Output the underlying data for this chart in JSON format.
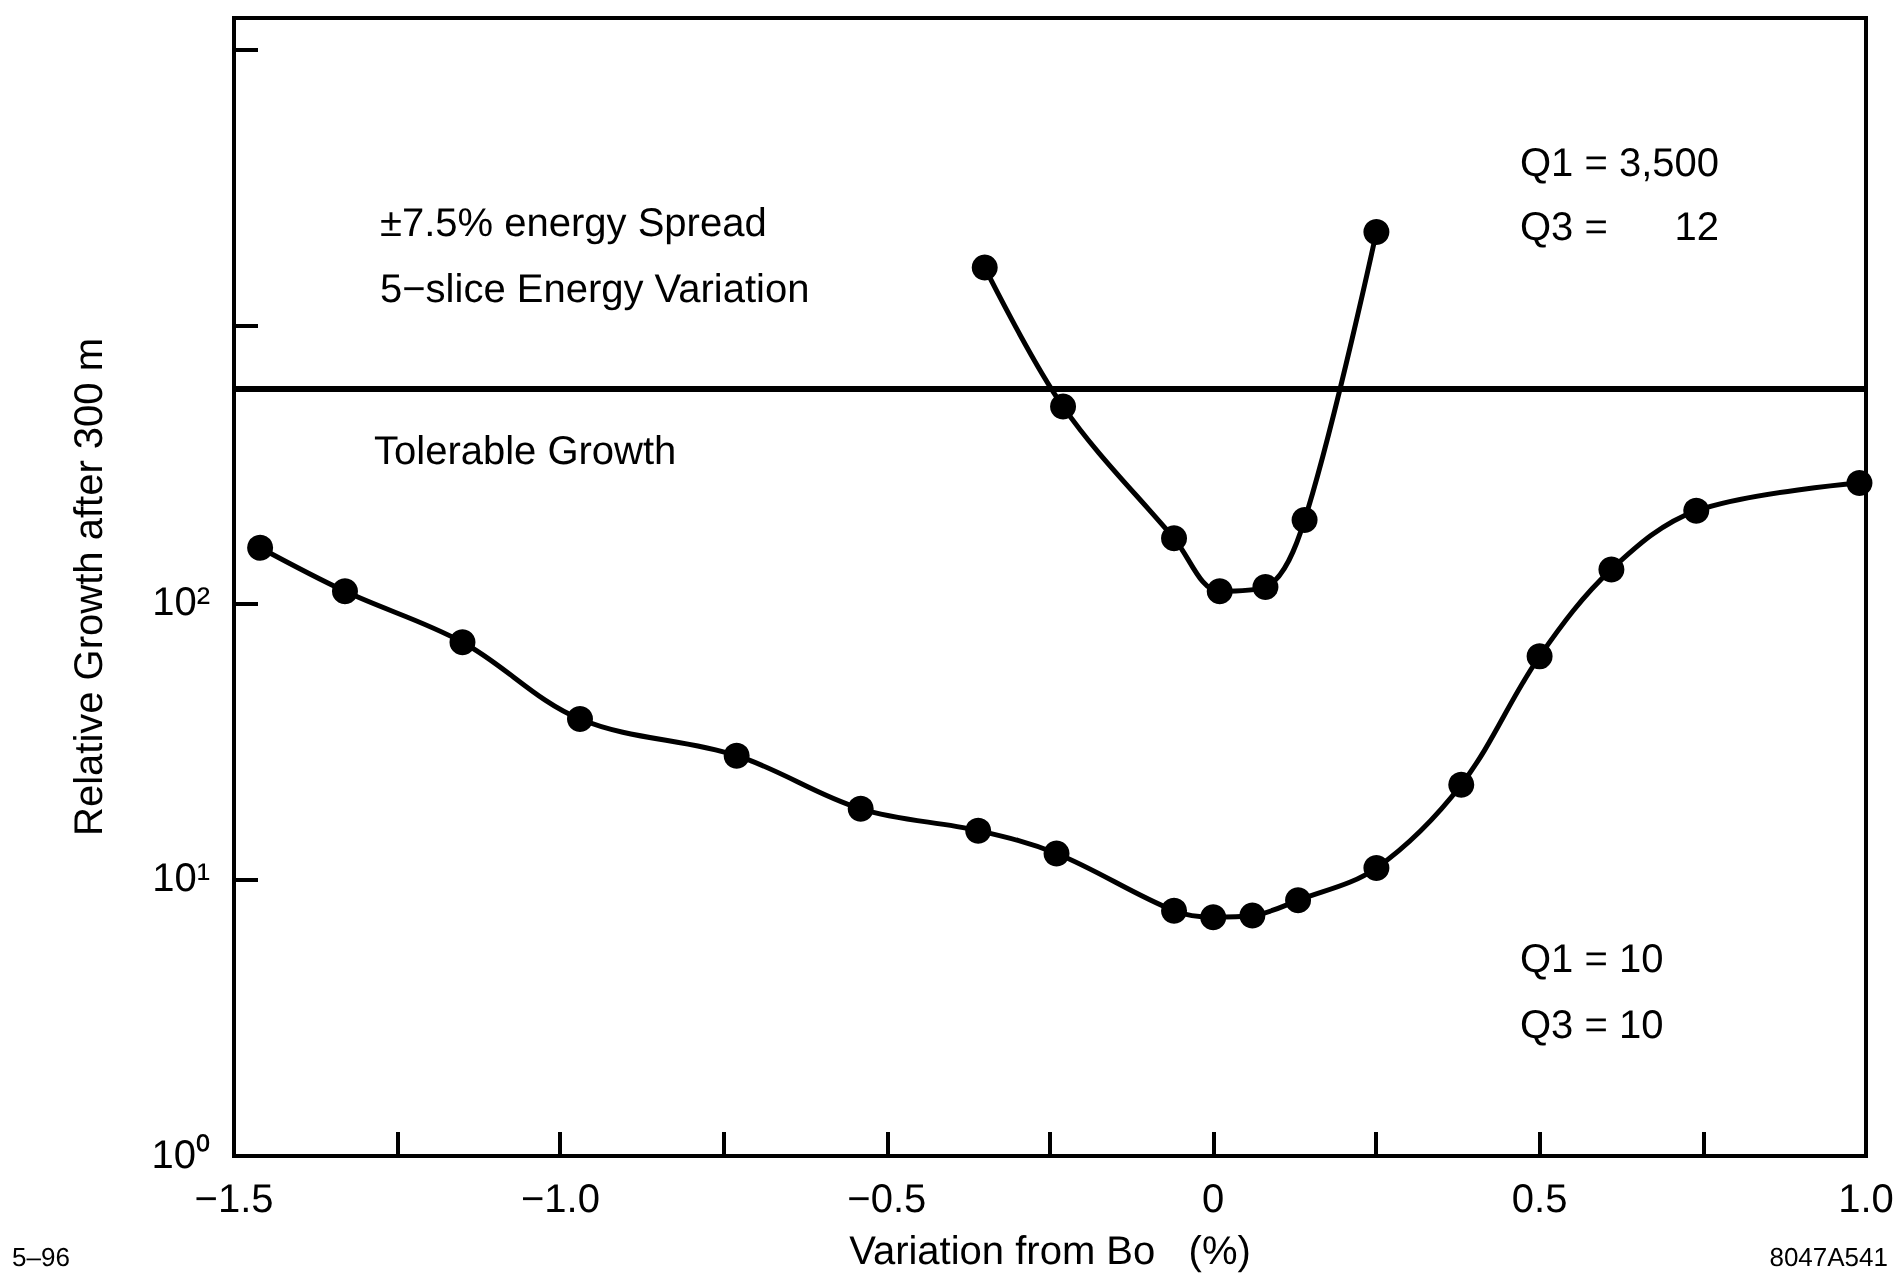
{
  "chart_data": {
    "type": "line",
    "xlabel": "Variation from Bo   (%)",
    "ylabel": "Relative Growth after 300 m",
    "log": "y",
    "grid": false,
    "marker": "circle",
    "line_style": "solid",
    "xlim": [
      -1.5,
      1.0
    ],
    "xticks": [
      {
        "value": -1.5,
        "label": "−1.5"
      },
      {
        "value": -1.25,
        "label": null
      },
      {
        "value": -1.0,
        "label": "−1.0"
      },
      {
        "value": -0.75,
        "label": null
      },
      {
        "value": -0.5,
        "label": "−0.5"
      },
      {
        "value": -0.25,
        "label": null
      },
      0,
      {
        "value": 0.25,
        "label": null
      },
      0.5,
      {
        "value": 0.75,
        "label": null
      },
      {
        "value": 1.0,
        "label": "1.0"
      }
    ],
    "ylim": [
      1,
      13000
    ],
    "yticks": [
      {
        "value": 1,
        "label": "10⁰"
      },
      {
        "value": 10,
        "label": "10¹"
      },
      {
        "value": 100,
        "label": "10²"
      },
      {
        "value": 1000,
        "label": null
      },
      {
        "value": 10000,
        "label": null
      }
    ],
    "series": [
      {
        "color": "#000000",
        "x": [
          -1.46,
          -1.33,
          -1.15,
          -0.97,
          -0.73,
          -0.54,
          -0.36,
          -0.24,
          -0.06,
          0.0,
          0.06,
          0.13,
          0.25,
          0.38,
          0.5,
          0.61,
          0.74,
          0.99
        ],
        "values": [
          158,
          110,
          72,
          38,
          28,
          18,
          15,
          12.4,
          7.7,
          7.3,
          7.4,
          8.4,
          11,
          22,
          64,
          132,
          215,
          271
        ]
      },
      {
        "color": "#000000",
        "x": [
          -0.35,
          -0.23,
          -0.06,
          0.01,
          0.08,
          0.14,
          0.25
        ],
        "values": [
          1630,
          512,
          171,
          110,
          114,
          199,
          2190
        ]
      }
    ],
    "ref_lines": [
      {
        "axis": "y",
        "value": 600,
        "label": "Tolerable Growth",
        "color": "#000000",
        "line_style": "solid"
      }
    ],
    "annotations": [
      "±7.5% energy Spread",
      "5−slice Energy Variation",
      "Q1 = 3,500",
      "Q3 =      12",
      "Q1 = 10",
      "Q3 = 10",
      "5–96",
      "8047A541"
    ]
  }
}
